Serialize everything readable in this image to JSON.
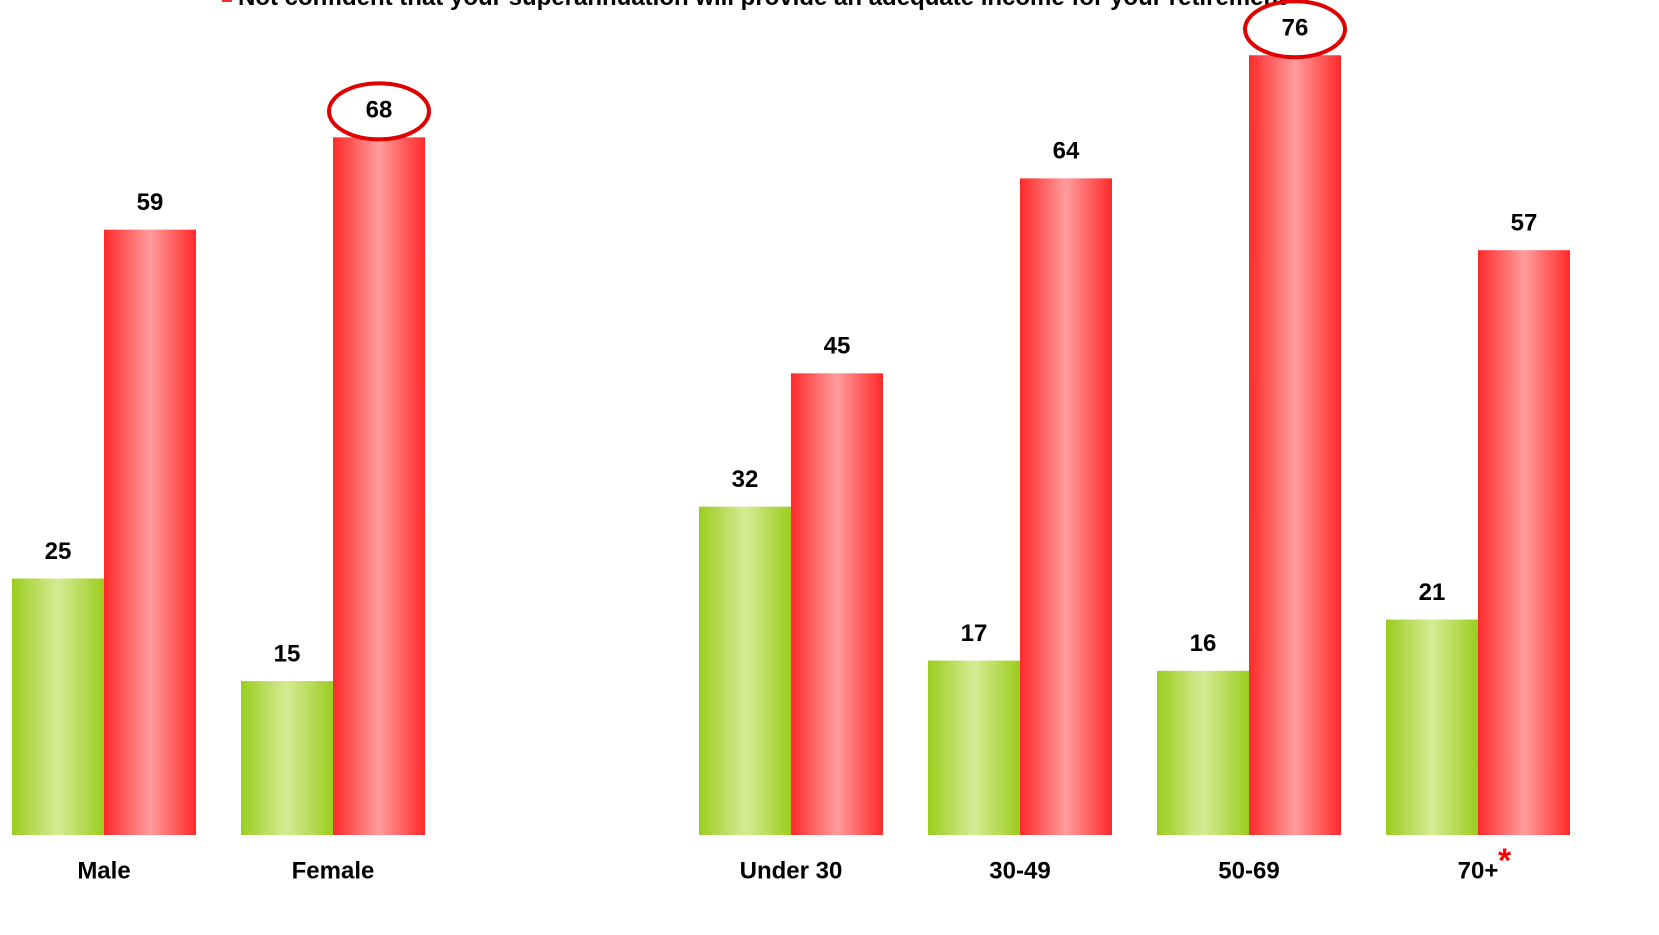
{
  "chart_data": {
    "type": "bar",
    "categories": [
      "Male",
      "Female",
      null,
      "Under 30",
      "30-49",
      "50-69",
      "70+"
    ],
    "series": [
      {
        "color": "#9acd1e",
        "values": [
          25,
          15,
          null,
          32,
          17,
          16,
          21
        ]
      },
      {
        "name": "Not confident that your superannuation will provide an adequate income for your retirement",
        "color": "#ff2a2a",
        "values": [
          59,
          68,
          null,
          45,
          64,
          76,
          57
        ],
        "highlighted": [
          1,
          5
        ]
      }
    ],
    "annotations": [
      {
        "text": "*",
        "category": 6,
        "color": "#ff0000"
      }
    ],
    "ylim": [
      0,
      80
    ],
    "grid": false,
    "legend": "top"
  }
}
